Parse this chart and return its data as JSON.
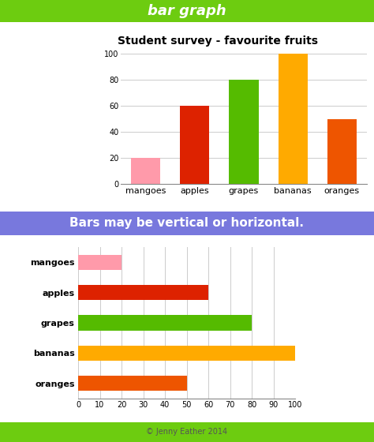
{
  "title_bar": "bar graph",
  "title_bar_bg": "#6dcc10",
  "title_bar_color": "white",
  "subtitle_bar": "Bars may be vertical or horizontal.",
  "subtitle_bar_bg": "#7878dd",
  "subtitle_bar_color": "white",
  "footer": "© Jenny Eather 2014",
  "footer_bg": "#6dcc10",
  "footer_color": "#555555",
  "chart1_title": "Student survey - favourite fruits",
  "categories": [
    "mangoes",
    "apples",
    "grapes",
    "bananas",
    "oranges"
  ],
  "values": [
    20,
    60,
    80,
    100,
    50
  ],
  "bar_colors": [
    "#ff9aaa",
    "#dd2200",
    "#55bb00",
    "#ffaa00",
    "#ee5500"
  ],
  "ylim": [
    0,
    100
  ],
  "yticks": [
    0,
    20,
    40,
    60,
    80,
    100
  ],
  "xlim": [
    0,
    100
  ],
  "xticks": [
    0,
    10,
    20,
    30,
    40,
    50,
    60,
    70,
    80,
    90,
    100
  ],
  "bg_color": "#ffffff",
  "grid_color": "#cccccc"
}
